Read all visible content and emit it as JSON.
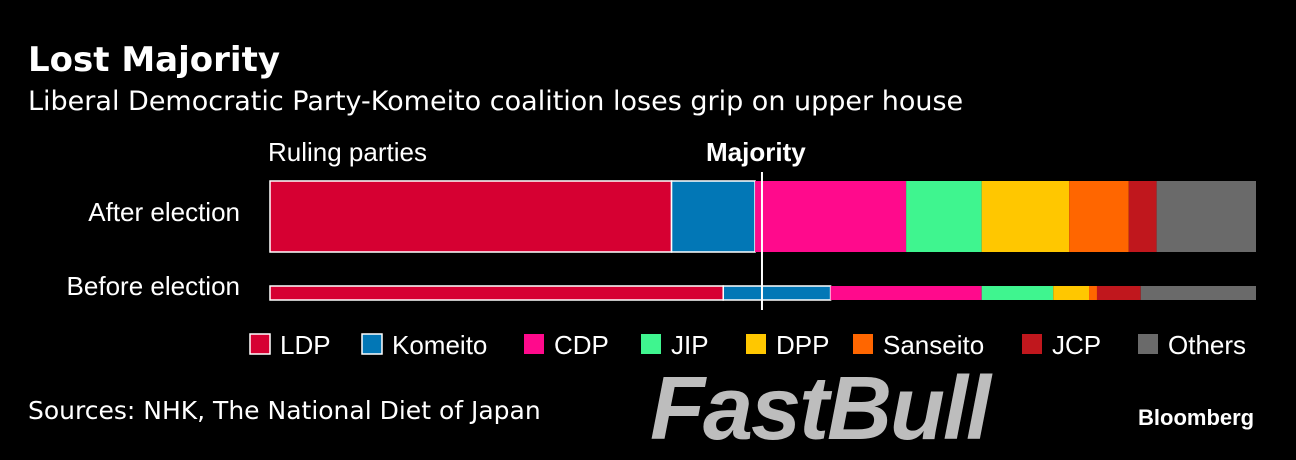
{
  "title": "Lost Majority",
  "subtitle": "Liberal Democratic Party-Komeito coalition loses grip on upper house",
  "source": "Sources: NHK, The National Diet of Japan",
  "watermark": "FastBull",
  "logo": "Bloomberg",
  "chart_data": {
    "type": "bar",
    "orientation": "horizontal-stacked",
    "annotations": {
      "ruling": "Ruling parties",
      "majority": "Majority"
    },
    "majority_value": 125,
    "total": 248,
    "categories": [
      "After election",
      "Before election"
    ],
    "series": [
      {
        "name": "LDP",
        "color": "#d60032",
        "ruling": true,
        "values": [
          101,
          114
        ]
      },
      {
        "name": "Komeito",
        "color": "#0277b6",
        "ruling": true,
        "values": [
          21,
          27
        ]
      },
      {
        "name": "CDP",
        "color": "#ff0a8c",
        "ruling": false,
        "values": [
          38,
          38
        ]
      },
      {
        "name": "JIP",
        "color": "#3ff58f",
        "ruling": false,
        "values": [
          19,
          18
        ]
      },
      {
        "name": "DPP",
        "color": "#ffc700",
        "ruling": false,
        "values": [
          22,
          9
        ]
      },
      {
        "name": "Sanseito",
        "color": "#ff6600",
        "ruling": false,
        "values": [
          15,
          2
        ]
      },
      {
        "name": "JCP",
        "color": "#c0171d",
        "ruling": false,
        "values": [
          7,
          11
        ]
      },
      {
        "name": "Others",
        "color": "#6a6a6a",
        "ruling": false,
        "values": [
          25,
          29
        ]
      }
    ],
    "legend_position": "bottom"
  }
}
